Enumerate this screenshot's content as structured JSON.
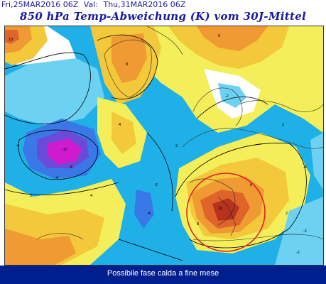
{
  "header": {
    "init_time": "Fri,25MAR2016 06Z",
    "valid_label": "Val:",
    "valid_time": "Thu,31MAR2016 06Z"
  },
  "map": {
    "title": "850 hPa Temp-Abweichung (K) vom 30J-Mittel",
    "highlight_circle_color": "#e0202a",
    "palette": {
      "very_cold": "#d01ad0",
      "cold_purple": "#6a4ad8",
      "cold_blue": "#3a78e8",
      "cool": "#1fb0e8",
      "cool_light": "#6dd2f2",
      "neutral": "#ffffff",
      "warm_light": "#f3ee5a",
      "warm": "#f3c83a",
      "warm_orange": "#ef9a32",
      "hot": "#e0632a",
      "very_hot": "#b8321e"
    }
  },
  "caption": {
    "text": "Possibile fase calda a fine mese"
  }
}
